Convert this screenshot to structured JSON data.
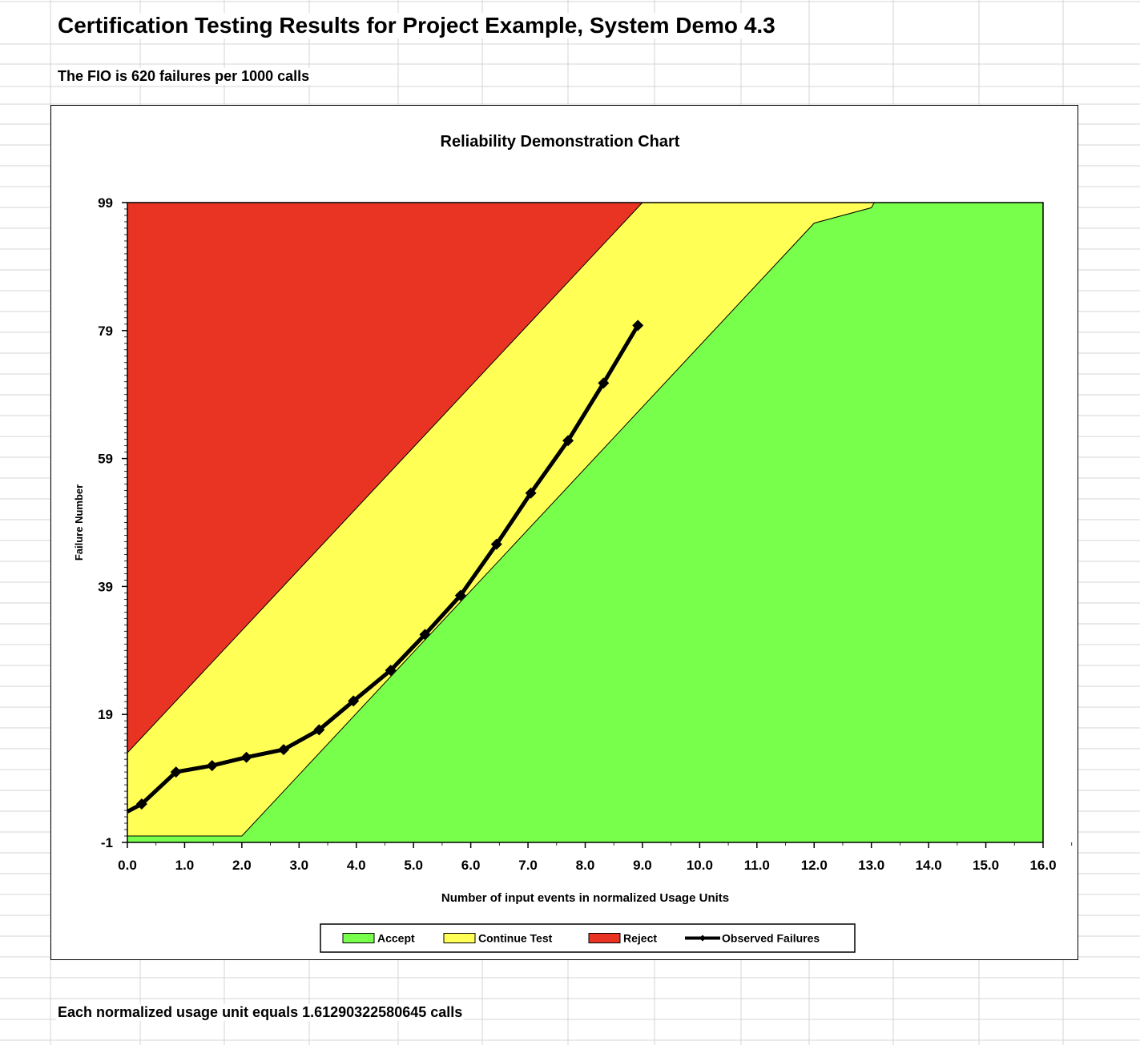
{
  "sheet": {
    "title": "Certification Testing Results for Project Example, System Demo 4.3",
    "fio_text": "The FIO is 620 failures per 1000 calls",
    "footer_text": "Each normalized usage unit equals 1.61290322580645 calls"
  },
  "chart_data": {
    "type": "area",
    "title": "Reliability Demonstration Chart",
    "xlabel": "Number of input events in normalized Usage Units",
    "ylabel": "Failure Number",
    "xlim": [
      0,
      16
    ],
    "ylim": [
      -1,
      99
    ],
    "x_ticks": [
      "0.0",
      "1.0",
      "2.0",
      "3.0",
      "4.0",
      "5.0",
      "6.0",
      "7.0",
      "8.0",
      "9.0",
      "10.0",
      "11.0",
      "12.0",
      "13.0",
      "14.0",
      "15.0",
      "16.0"
    ],
    "y_ticks": [
      "-1",
      "19",
      "39",
      "59",
      "79",
      "99"
    ],
    "legend_position": "bottom",
    "colors": {
      "accept": "#77FF4C",
      "continue": "#FFFF55",
      "reject": "#E93424",
      "observed": "#000000"
    },
    "regions": [
      {
        "name": "Reject",
        "color_key": "reject",
        "boundary": [
          [
            0,
            13
          ],
          [
            9.0,
            99
          ]
        ]
      },
      {
        "name": "Accept",
        "color_key": "accept",
        "boundary": [
          [
            0,
            0
          ],
          [
            2.0,
            0
          ],
          [
            12.0,
            95.8
          ],
          [
            13.0,
            98.2
          ],
          [
            13.05,
            99
          ]
        ]
      }
    ],
    "series": [
      {
        "name": "Observed Failures",
        "x": [
          0.0,
          0.25,
          0.85,
          1.48,
          2.08,
          2.73,
          3.35,
          3.95,
          4.6,
          5.2,
          5.82,
          6.45,
          7.05,
          7.7,
          8.32,
          8.92
        ],
        "y": [
          3.8,
          5.0,
          10.0,
          11.0,
          12.3,
          13.5,
          16.6,
          21.1,
          25.9,
          31.5,
          37.6,
          45.6,
          53.6,
          61.8,
          70.8,
          79.8
        ]
      }
    ],
    "legend": [
      {
        "label": "Accept",
        "kind": "swatch",
        "color_key": "accept"
      },
      {
        "label": "Continue Test",
        "kind": "swatch",
        "color_key": "continue"
      },
      {
        "label": "Reject",
        "kind": "swatch",
        "color_key": "reject"
      },
      {
        "label": "Observed Failures",
        "kind": "line",
        "color_key": "observed"
      }
    ]
  }
}
